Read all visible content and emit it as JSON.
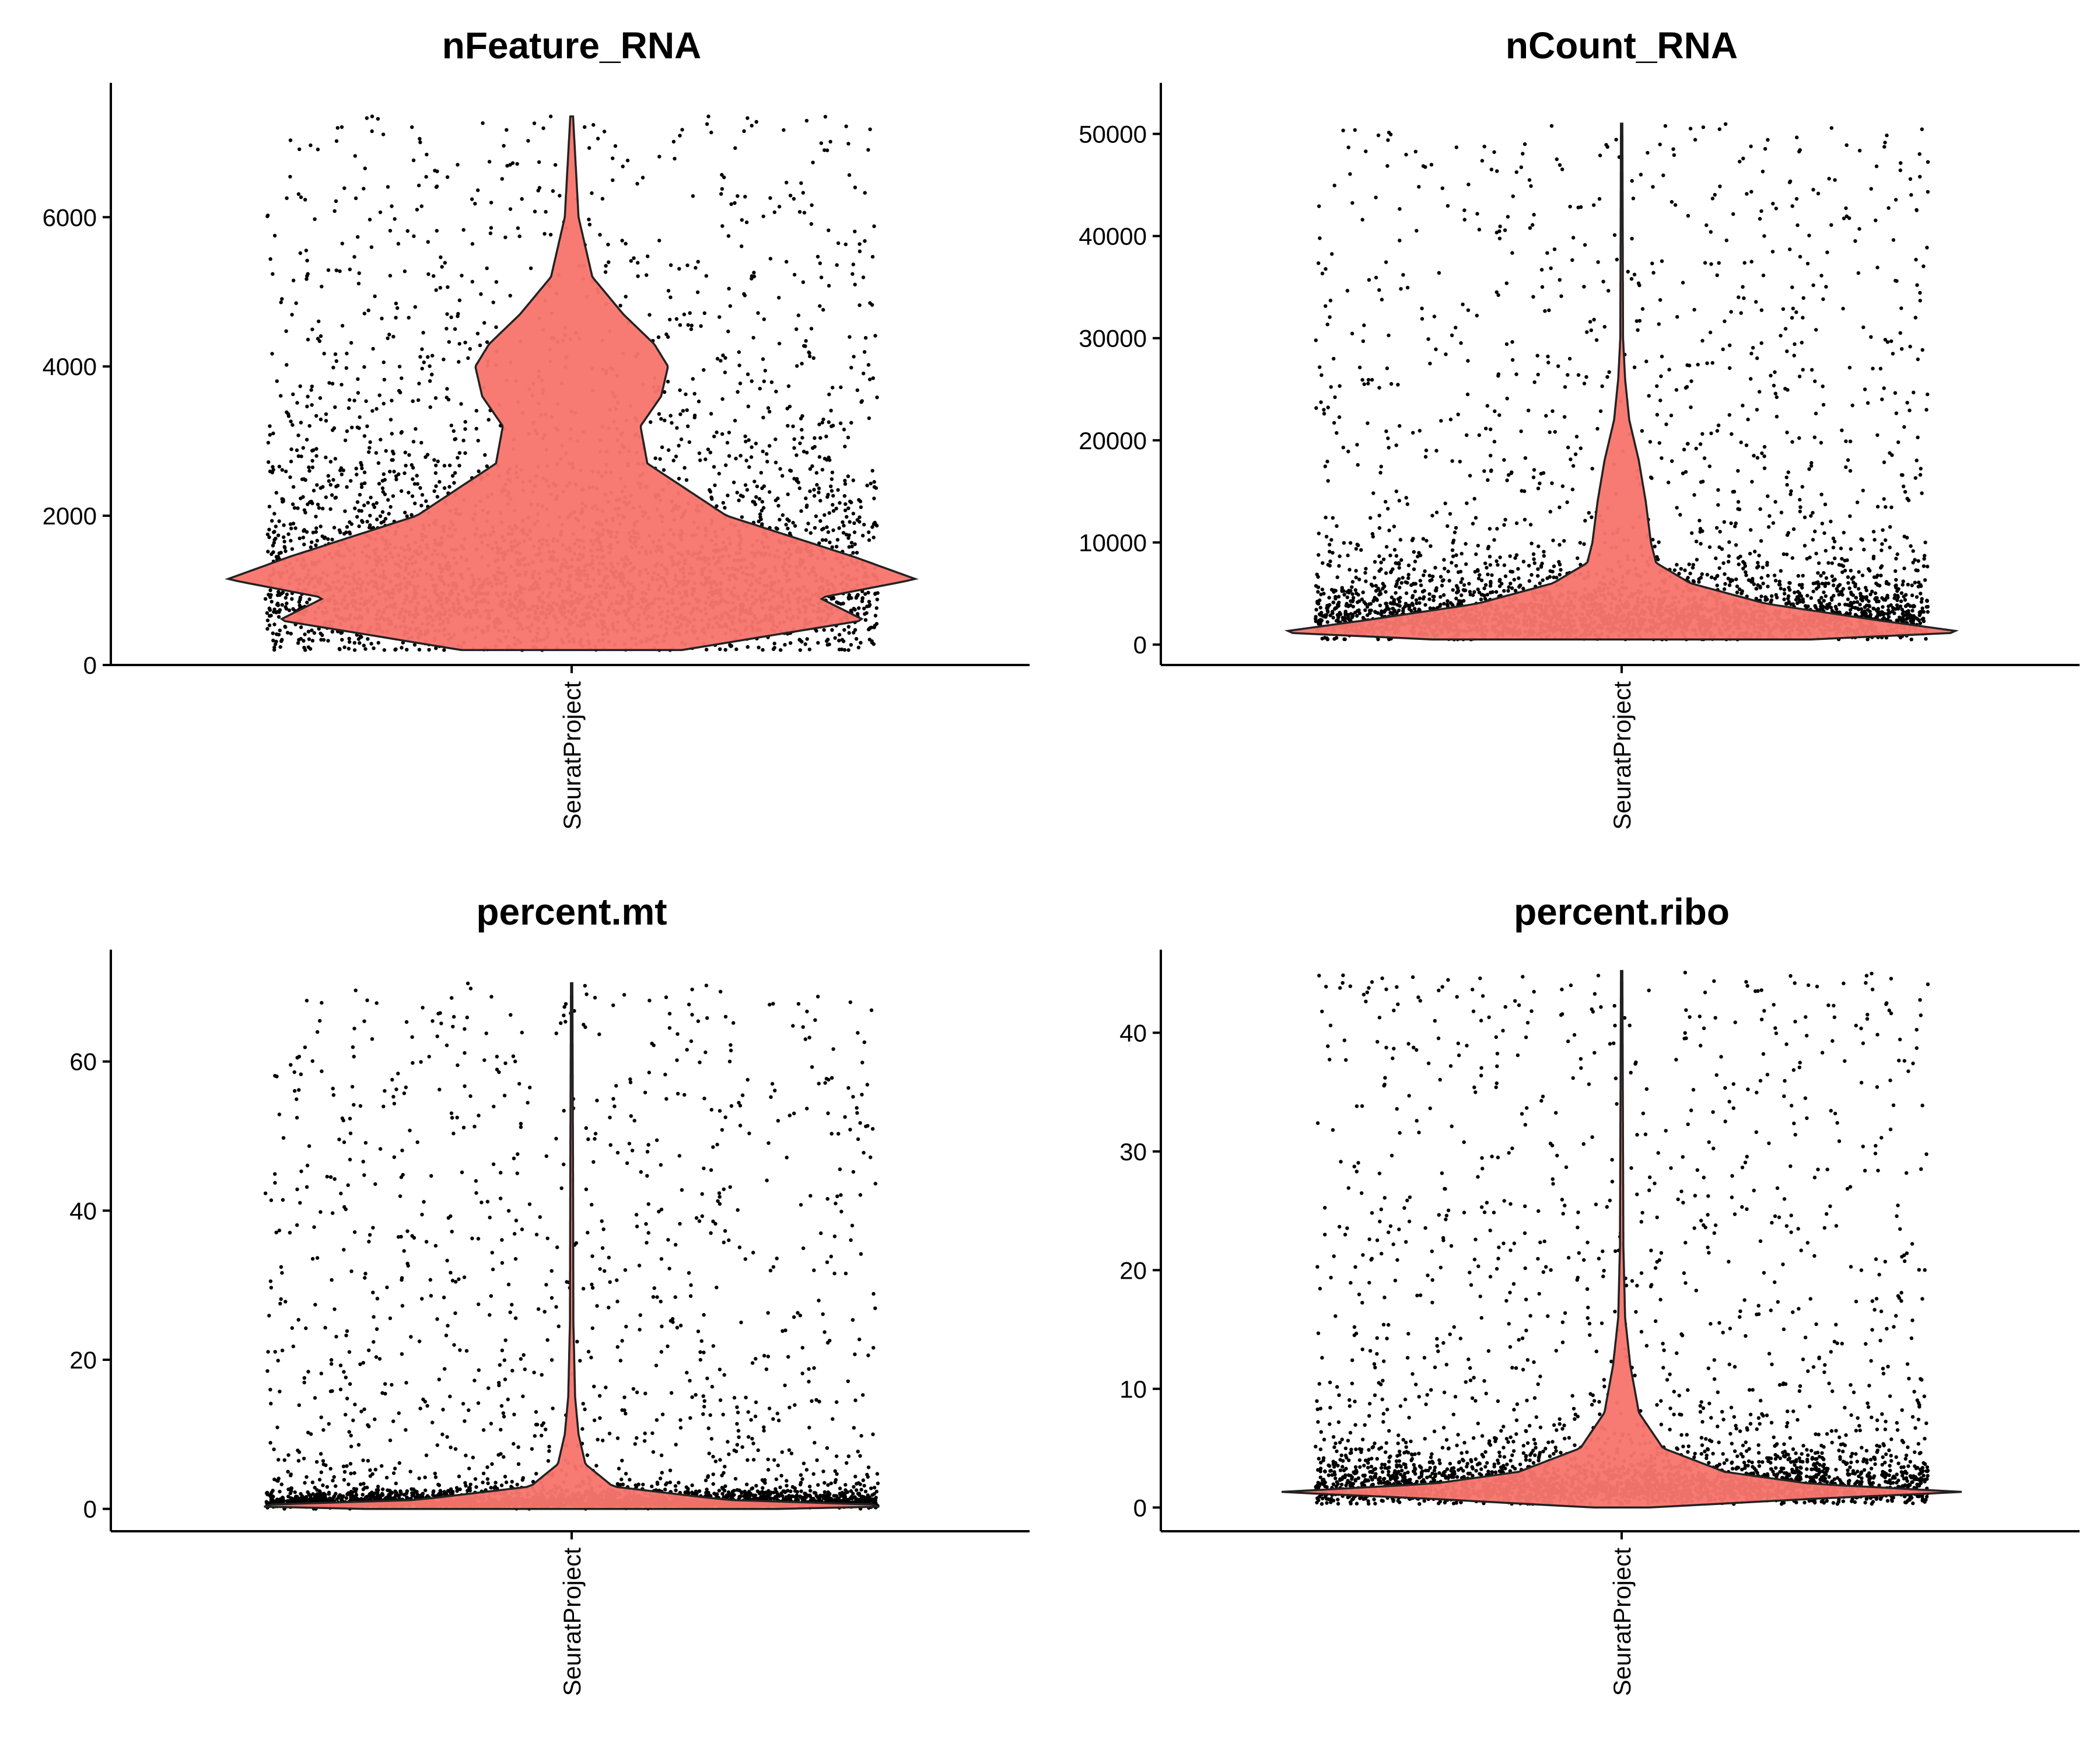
{
  "chart_data": [
    {
      "type": "violin",
      "title": "nFeature_RNA",
      "categories": [
        "SeuratProject"
      ],
      "ylim": [
        0,
        7800
      ],
      "yticks": [
        0,
        2000,
        4000,
        6000
      ],
      "ytick_labels": [
        "0",
        "2000",
        "4000",
        "6000"
      ],
      "data_max": 7350,
      "fill_color": "#f8766d",
      "density": [
        [
          200,
          0.32
        ],
        [
          600,
          0.85
        ],
        [
          900,
          0.72
        ],
        [
          1150,
          1.0
        ],
        [
          1450,
          0.82
        ],
        [
          2000,
          0.45
        ],
        [
          2700,
          0.22
        ],
        [
          3200,
          0.2
        ],
        [
          3600,
          0.26
        ],
        [
          4000,
          0.28
        ],
        [
          4300,
          0.24
        ],
        [
          4700,
          0.15
        ],
        [
          5200,
          0.06
        ],
        [
          6000,
          0.02
        ],
        [
          7350,
          0.004
        ]
      ],
      "jitter": {
        "min": 200,
        "max": 7350,
        "median": 1200,
        "count": 3600
      }
    },
    {
      "type": "violin",
      "title": "nCount_RNA",
      "categories": [
        "SeuratProject"
      ],
      "ylim": [
        -2000,
        55000
      ],
      "yticks": [
        0,
        10000,
        20000,
        30000,
        40000,
        50000
      ],
      "ytick_labels": [
        "0",
        "10000",
        "20000",
        "30000",
        "40000",
        "50000"
      ],
      "data_max": 51000,
      "fill_color": "#f8766d",
      "density": [
        [
          500,
          0.55
        ],
        [
          1200,
          1.0
        ],
        [
          2500,
          0.72
        ],
        [
          4000,
          0.42
        ],
        [
          6000,
          0.2
        ],
        [
          8000,
          0.1
        ],
        [
          10000,
          0.085
        ],
        [
          14000,
          0.07
        ],
        [
          18000,
          0.05
        ],
        [
          22000,
          0.022
        ],
        [
          26000,
          0.01
        ],
        [
          30000,
          0.004
        ],
        [
          51000,
          0.002
        ]
      ],
      "jitter": {
        "min": 500,
        "max": 51000,
        "median": 3000,
        "count": 3400
      }
    },
    {
      "type": "violin",
      "title": "percent.mt",
      "categories": [
        "SeuratProject"
      ],
      "ylim": [
        -3,
        75
      ],
      "yticks": [
        0,
        20,
        40,
        60
      ],
      "ytick_labels": [
        "0",
        "20",
        "40",
        "60"
      ],
      "data_max": 70.5,
      "fill_color": "#f8766d",
      "density": [
        [
          0,
          0.6
        ],
        [
          0.4,
          1.0
        ],
        [
          1.2,
          0.45
        ],
        [
          3,
          0.12
        ],
        [
          6,
          0.04
        ],
        [
          10,
          0.02
        ],
        [
          15,
          0.01
        ],
        [
          25,
          0.005
        ],
        [
          45,
          0.004
        ],
        [
          70.5,
          0.002
        ]
      ],
      "jitter": {
        "min": 0,
        "max": 70.5,
        "median": 1,
        "count": 3400
      }
    },
    {
      "type": "violin",
      "title": "percent.ribo",
      "categories": [
        "SeuratProject"
      ],
      "ylim": [
        -2,
        47
      ],
      "yticks": [
        0,
        10,
        20,
        30,
        40
      ],
      "ytick_labels": [
        "0",
        "10",
        "20",
        "30",
        "40"
      ],
      "data_max": 45.2,
      "fill_color": "#f8766d",
      "density": [
        [
          0,
          0.08
        ],
        [
          0.8,
          0.6
        ],
        [
          1.3,
          1.0
        ],
        [
          2,
          0.55
        ],
        [
          3,
          0.3
        ],
        [
          5,
          0.12
        ],
        [
          8,
          0.05
        ],
        [
          12,
          0.025
        ],
        [
          16,
          0.01
        ],
        [
          22,
          0.005
        ],
        [
          45.2,
          0.002
        ]
      ],
      "jitter": {
        "min": 0.3,
        "max": 45.2,
        "median": 2,
        "count": 3400
      }
    }
  ]
}
